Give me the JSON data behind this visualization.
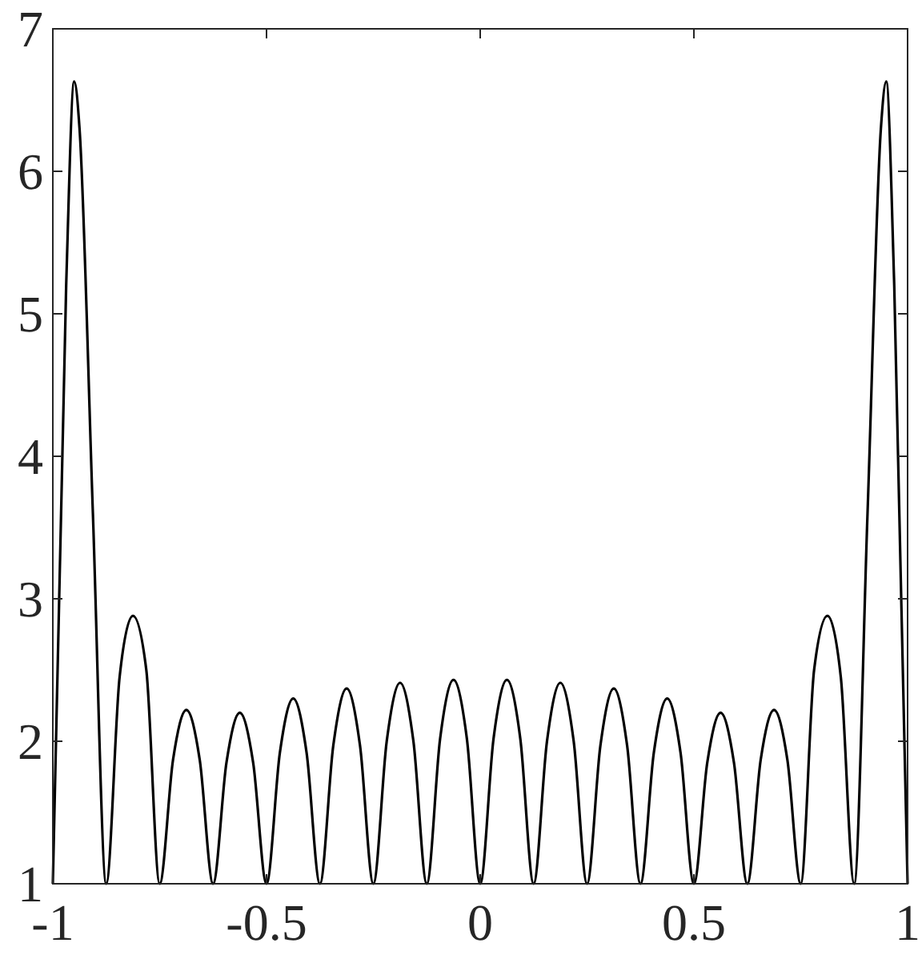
{
  "chart_data": {
    "type": "line",
    "x": [
      -1,
      -0.96875,
      -0.95,
      -0.9375,
      -0.90625,
      -0.875,
      -0.84375,
      -0.8125,
      -0.78125,
      -0.75,
      -0.71875,
      -0.6875,
      -0.65625,
      -0.625,
      -0.59375,
      -0.5625,
      -0.53125,
      -0.5,
      -0.46875,
      -0.4375,
      -0.40625,
      -0.375,
      -0.34375,
      -0.3125,
      -0.28125,
      -0.25,
      -0.21875,
      -0.1875,
      -0.15625,
      -0.125,
      -0.09375,
      -0.0625,
      -0.03125,
      0,
      0.03125,
      0.0625,
      0.09375,
      0.125,
      0.15625,
      0.1875,
      0.21875,
      0.25,
      0.28125,
      0.3125,
      0.34375,
      0.375,
      0.40625,
      0.4375,
      0.46875,
      0.5,
      0.53125,
      0.5625,
      0.59375,
      0.625,
      0.65625,
      0.6875,
      0.71875,
      0.75,
      0.78125,
      0.8125,
      0.84375,
      0.875,
      0.90625,
      0.9375,
      0.95,
      0.96875,
      1
    ],
    "series": [
      {
        "color": "#000000",
        "values": [
          1,
          5.2,
          6.63,
          6.3,
          3.6,
          1,
          2.45,
          2.88,
          2.5,
          1,
          1.87,
          2.22,
          1.87,
          1,
          1.85,
          2.2,
          1.85,
          1,
          1.92,
          2.3,
          1.92,
          1,
          1.97,
          2.37,
          1.97,
          1,
          2.0,
          2.41,
          2.0,
          1,
          2.02,
          2.43,
          2.02,
          1,
          2.02,
          2.43,
          2.02,
          1,
          2.0,
          2.41,
          2.0,
          1,
          1.97,
          2.37,
          1.97,
          1,
          1.92,
          2.3,
          1.92,
          1,
          1.85,
          2.2,
          1.85,
          1,
          1.87,
          2.22,
          1.87,
          1,
          2.5,
          2.88,
          2.45,
          1,
          3.6,
          6.3,
          6.63,
          5.2,
          1
        ]
      }
    ],
    "xlim": [
      -1,
      1
    ],
    "ylim": [
      1,
      7
    ],
    "xticks": [
      -1,
      -0.5,
      0,
      0.5,
      1
    ],
    "yticks": [
      1,
      2,
      3,
      4,
      5,
      6,
      7
    ],
    "grid": false,
    "marker": "none",
    "line_style": "solid"
  }
}
